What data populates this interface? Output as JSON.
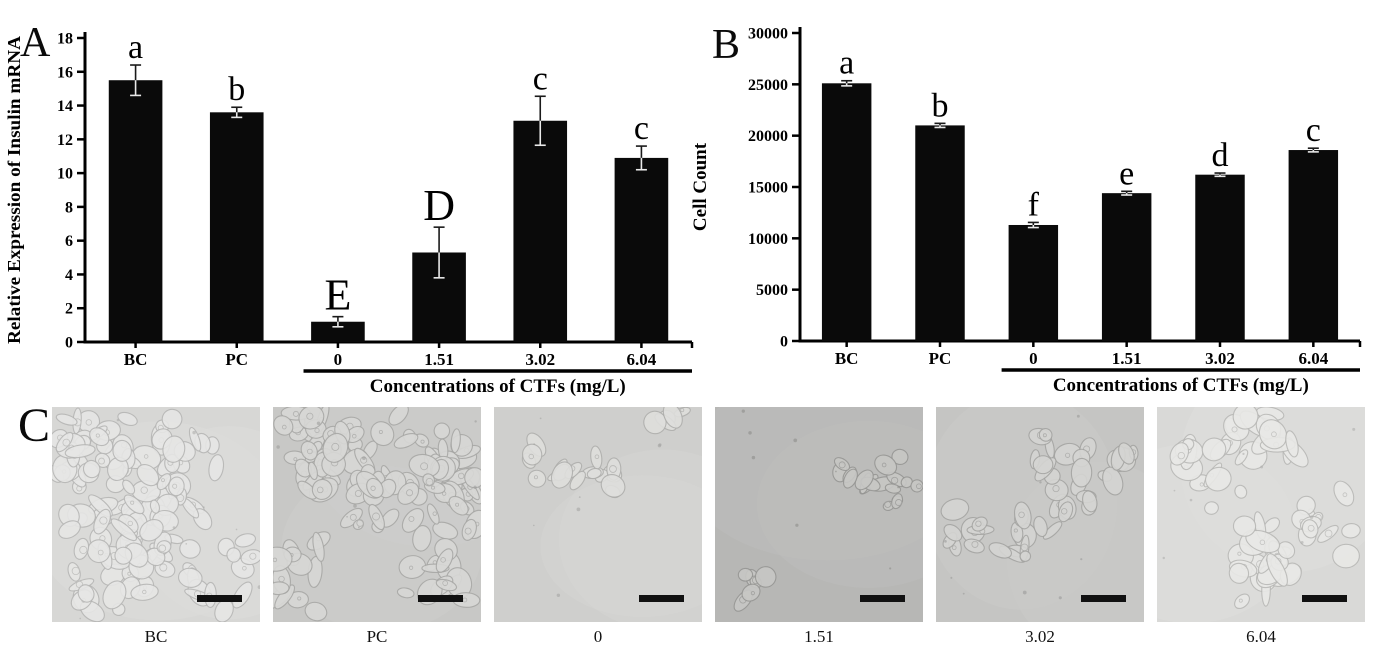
{
  "figure": {
    "panels": {
      "a": {
        "letter": "A"
      },
      "b": {
        "letter": "B"
      },
      "c": {
        "letter": "C",
        "images": [
          {
            "label": "BC",
            "bg": "#d7d7d5",
            "density": "high"
          },
          {
            "label": "PC",
            "bg": "#c8c8c6",
            "density": "high"
          },
          {
            "label": "0",
            "bg": "#cfcfcd",
            "density": "low"
          },
          {
            "label": "1.51",
            "bg": "#b7b7b5",
            "density": "low"
          },
          {
            "label": "3.02",
            "bg": "#c5c5c3",
            "density": "medium"
          },
          {
            "label": "6.04",
            "bg": "#d9d9d7",
            "density": "medium-high"
          }
        ]
      }
    }
  },
  "chart_data": [
    {
      "id": "A",
      "type": "bar",
      "title": "",
      "categories": [
        "BC",
        "PC",
        "0",
        "1.51",
        "3.02",
        "6.04"
      ],
      "values": [
        15.5,
        13.6,
        1.2,
        5.3,
        13.1,
        10.9
      ],
      "errors": [
        0.9,
        0.3,
        0.3,
        1.5,
        1.45,
        0.7
      ],
      "sig_letters": [
        "a",
        "b",
        "E",
        "D",
        "c",
        "c"
      ],
      "xlabel": "",
      "ylabel": "Relative Expression of Insulin mRNA",
      "ylim": [
        0,
        18
      ],
      "ytick_step": 2,
      "bar_color": "#0a0a0a",
      "grid": false,
      "group_axis_label": "Concentrations of CTFs (mg/L)",
      "group_start_index": 2
    },
    {
      "id": "B",
      "type": "bar",
      "title": "",
      "categories": [
        "BC",
        "PC",
        "0",
        "1.51",
        "3.02",
        "6.04"
      ],
      "values": [
        25100,
        21000,
        11300,
        14400,
        16200,
        18600
      ],
      "errors": [
        250,
        200,
        250,
        180,
        160,
        180
      ],
      "sig_letters": [
        "a",
        "b",
        "f",
        "e",
        "d",
        "c"
      ],
      "xlabel": "",
      "ylabel": "Cell Count",
      "ylim": [
        0,
        30000
      ],
      "ytick_step": 5000,
      "bar_color": "#0a0a0a",
      "grid": false,
      "group_axis_label": "Concentrations of CTFs (mg/L)",
      "group_start_index": 2
    }
  ]
}
